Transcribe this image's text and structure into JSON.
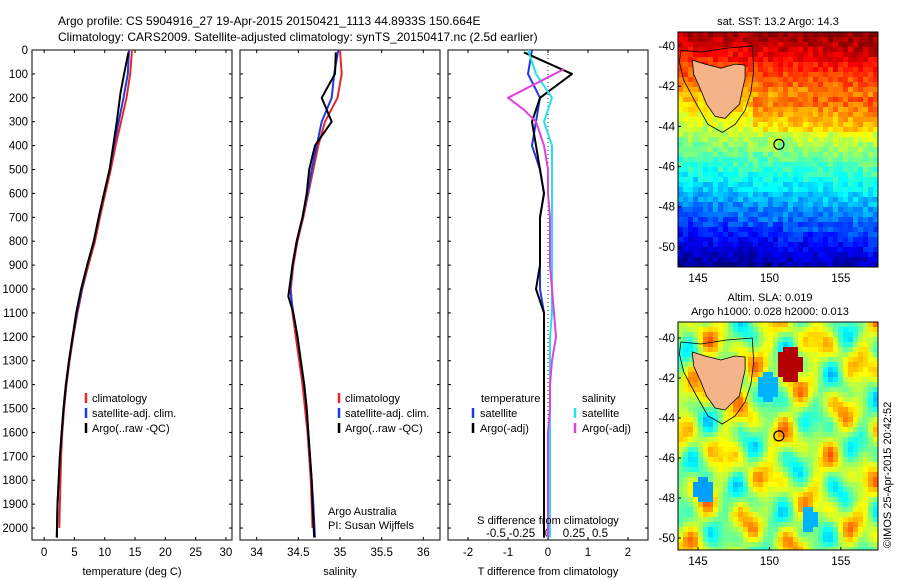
{
  "header": {
    "line1": "Argo profile: CS 5904916_27 19-Apr-2015 20150421_1113 44.8933S 150.664E",
    "line2": "Climatology: CARS2009. Satellite-adjusted climatology: synTS_20150417.nc (2.5d earlier)"
  },
  "colors": {
    "climatology": "#e8262a",
    "satellite": "#1f3ae0",
    "argo": "#000000",
    "satellite_salinity": "#22e0ee",
    "argo_salinity_diff": "#e040e0",
    "land": "#f5b38a"
  },
  "chart_data": [
    {
      "type": "line",
      "name_key": "temperature",
      "xlabel": "temperature (deg C)",
      "ylabel": "",
      "xlim": [
        -2,
        31
      ],
      "ylim": [
        2050,
        0
      ],
      "xticks": [
        0,
        5,
        10,
        15,
        20,
        25,
        30
      ],
      "yticks": [
        0,
        100,
        200,
        300,
        400,
        500,
        600,
        700,
        800,
        900,
        1000,
        1100,
        1200,
        1300,
        1400,
        1500,
        1600,
        1700,
        1800,
        1900,
        2000
      ],
      "legend": [
        "climatology",
        "satellite-adj. clim.",
        "Argo(..raw -QC)"
      ],
      "legend_position": "lower-right",
      "series": [
        {
          "name": "climatology",
          "color": "#e8262a",
          "x": [
            14.5,
            14.2,
            13.6,
            12.7,
            11.8,
            11.0,
            10.1,
            9.2,
            8.4,
            7.3,
            6.3,
            5.5,
            4.8,
            4.2,
            3.7,
            3.3,
            3.0,
            2.8,
            2.7,
            2.6,
            2.5
          ],
          "y": [
            0,
            100,
            200,
            300,
            400,
            500,
            600,
            700,
            800,
            900,
            1000,
            1100,
            1200,
            1300,
            1400,
            1500,
            1600,
            1700,
            1800,
            1900,
            2000
          ]
        },
        {
          "name": "satellite-adj. clim.",
          "color": "#1f3ae0",
          "x": [
            14.0,
            13.8,
            13.1,
            12.3,
            11.5,
            10.8,
            9.9,
            9.0,
            8.2,
            7.1,
            6.2,
            5.4,
            4.7,
            4.1,
            3.6,
            3.2,
            2.9,
            2.6,
            2.4,
            2.2,
            2.1
          ],
          "y": [
            0,
            100,
            200,
            300,
            400,
            500,
            600,
            700,
            800,
            900,
            1000,
            1100,
            1200,
            1300,
            1400,
            1500,
            1600,
            1700,
            1800,
            1900,
            2040
          ]
        },
        {
          "name": "Argo(..raw -QC)",
          "color": "#000000",
          "x": [
            13.9,
            13.2,
            12.6,
            12.0,
            11.4,
            10.8,
            9.9,
            9.0,
            8.2,
            7.1,
            6.1,
            5.3,
            4.7,
            4.1,
            3.6,
            3.2,
            2.9,
            2.6,
            2.4,
            2.2,
            2.1
          ],
          "y": [
            10,
            100,
            180,
            300,
            400,
            500,
            600,
            700,
            800,
            900,
            1000,
            1100,
            1200,
            1300,
            1400,
            1500,
            1600,
            1700,
            1800,
            1900,
            2040
          ]
        }
      ]
    },
    {
      "type": "line",
      "name_key": "salinity",
      "xlabel": "salinity",
      "xlim": [
        33.8,
        36.2
      ],
      "ylim": [
        2050,
        0
      ],
      "xticks": [
        34,
        34.5,
        35,
        35.5,
        36
      ],
      "legend": [
        "climatology",
        "satellite-adj. clim.",
        "Argo(..raw -QC)"
      ],
      "legend_position": "lower-right",
      "annotation": [
        "Argo Australia",
        "PI: Susan Wijffels"
      ],
      "series": [
        {
          "name": "climatology",
          "color": "#e8262a",
          "x": [
            35.0,
            35.02,
            34.97,
            34.82,
            34.74,
            34.68,
            34.62,
            34.56,
            34.49,
            34.44,
            34.41,
            34.43,
            34.47,
            34.51,
            34.55,
            34.58,
            34.61,
            34.63,
            34.65,
            34.66,
            34.67
          ],
          "y": [
            0,
            100,
            200,
            300,
            400,
            500,
            600,
            700,
            800,
            900,
            1000,
            1100,
            1200,
            1300,
            1400,
            1500,
            1600,
            1700,
            1800,
            1900,
            2000
          ]
        },
        {
          "name": "satellite-adj. clim.",
          "color": "#1f3ae0",
          "x": [
            34.98,
            34.93,
            34.9,
            34.78,
            34.72,
            34.66,
            34.61,
            34.55,
            34.48,
            34.43,
            34.4,
            34.44,
            34.49,
            34.53,
            34.57,
            34.6,
            34.62,
            34.64,
            34.66,
            34.68,
            34.7
          ],
          "y": [
            0,
            100,
            200,
            300,
            400,
            500,
            600,
            700,
            800,
            900,
            1000,
            1100,
            1200,
            1300,
            1400,
            1500,
            1600,
            1700,
            1800,
            1900,
            2040
          ]
        },
        {
          "name": "Argo(..raw -QC)",
          "color": "#000000",
          "x": [
            34.95,
            34.94,
            34.78,
            34.9,
            34.7,
            34.63,
            34.6,
            34.55,
            34.48,
            34.43,
            34.38,
            34.44,
            34.49,
            34.53,
            34.57,
            34.6,
            34.62,
            34.64,
            34.66,
            34.67,
            34.69
          ],
          "y": [
            10,
            100,
            200,
            300,
            400,
            500,
            600,
            700,
            800,
            900,
            1030,
            1100,
            1200,
            1300,
            1400,
            1500,
            1600,
            1700,
            1800,
            1900,
            2040
          ]
        }
      ]
    },
    {
      "type": "line",
      "name_key": "difference",
      "xlabel": "T difference from climatology",
      "xlabel_top": "S difference from climatology",
      "xlim": [
        -2.5,
        2.5
      ],
      "ylim": [
        2050,
        0
      ],
      "xticks": [
        -2,
        -1,
        0,
        1,
        2
      ],
      "xticks_top": [
        "-0.5",
        "-0.25",
        "0",
        "0.25",
        "0.5"
      ],
      "legend_left": {
        "title": "temperature",
        "items": [
          "satellite",
          "Argo(-adj)"
        ]
      },
      "legend_right": {
        "title": "salinity",
        "items": [
          "satellite",
          "Argo(-adj)"
        ]
      },
      "legend_position": "lower-center",
      "series": [
        {
          "name": "temperature satellite",
          "color": "#1f3ae0",
          "x": [
            -0.4,
            -0.5,
            -0.2,
            -0.3,
            -0.4,
            -0.2,
            -0.1,
            -0.2,
            -0.2,
            -0.2,
            -0.2,
            -0.1,
            -0.1,
            -0.1,
            -0.1,
            -0.1,
            -0.1,
            -0.1,
            -0.1,
            -0.1
          ],
          "y": [
            0,
            100,
            200,
            300,
            400,
            500,
            600,
            700,
            800,
            900,
            1000,
            1100,
            1200,
            1300,
            1400,
            1500,
            1600,
            1700,
            1800,
            2040
          ]
        },
        {
          "name": "temperature Argo(-adj)",
          "color": "#000000",
          "x": [
            -0.6,
            0.6,
            -0.2,
            -0.4,
            -0.3,
            -0.2,
            -0.1,
            -0.2,
            -0.2,
            -0.2,
            -0.3,
            -0.1,
            -0.1,
            -0.1,
            -0.1,
            -0.1,
            -0.1,
            -0.1,
            -0.1,
            -0.1
          ],
          "y": [
            10,
            100,
            200,
            300,
            400,
            500,
            600,
            700,
            800,
            900,
            1000,
            1100,
            1200,
            1300,
            1400,
            1500,
            1600,
            1700,
            1800,
            2040
          ]
        },
        {
          "name": "salinity satellite",
          "color": "#22e0ee",
          "x": [
            -0.5,
            -0.3,
            0.1,
            -0.1,
            0.1,
            0.1,
            0.1,
            0.1,
            0.1,
            0.1,
            0.1,
            0.1,
            0.05,
            0.05,
            0.05,
            0.05,
            0.05,
            0.05,
            0.05,
            0.05
          ],
          "y": [
            0,
            100,
            200,
            300,
            400,
            500,
            600,
            700,
            800,
            900,
            1000,
            1100,
            1200,
            1300,
            1400,
            1500,
            1600,
            1700,
            1800,
            2040
          ]
        },
        {
          "name": "salinity Argo(-adj)",
          "color": "#e040e0",
          "x": [
            0.4,
            -1.0,
            -0.6,
            -0.3,
            -0.1,
            0.0,
            0.0,
            0.05,
            0.05,
            0.05,
            0.1,
            0.15,
            0.2,
            0.1,
            0.05,
            0.05,
            0.0,
            0.0,
            0.0,
            0.0
          ],
          "y": [
            80,
            200,
            250,
            300,
            400,
            500,
            600,
            700,
            800,
            900,
            1000,
            1100,
            1200,
            1300,
            1400,
            1500,
            1600,
            1700,
            1800,
            2040
          ]
        }
      ]
    },
    {
      "type": "heatmap",
      "name_key": "sst_map",
      "title": "sat. SST: 13.2  Argo: 14.3",
      "xticks": [
        145,
        150,
        155
      ],
      "yticks": [
        -40,
        -42,
        -44,
        -46,
        -48,
        -50
      ],
      "argo_position": {
        "lon": 150.664,
        "lat": -44.8933
      }
    },
    {
      "type": "heatmap",
      "name_key": "sla_map",
      "title_line1": "Altim. SLA: 0.019",
      "title_line2": "Argo h1000: 0.028  h2000: 0.013",
      "xticks": [
        145,
        150,
        155
      ],
      "yticks": [
        -40,
        -42,
        -44,
        -46,
        -48,
        -50
      ],
      "side_label": "©IMOS 25-Apr-2015 20:42:52",
      "argo_position": {
        "lon": 150.664,
        "lat": -44.8933
      }
    }
  ]
}
